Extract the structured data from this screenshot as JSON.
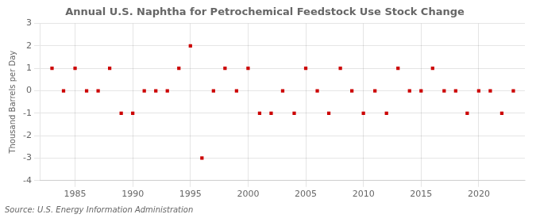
{
  "chart_data": {
    "type": "scatter",
    "title": "Annual U.S. Naphtha for Petrochemical Feedstock Use Stock Change",
    "ylabel": "Thousand Barrels per Day",
    "annotation": "Source: U.S. Energy Information Administration",
    "x": [
      1983,
      1984,
      1985,
      1986,
      1987,
      1988,
      1989,
      1990,
      1991,
      1992,
      1993,
      1994,
      1995,
      1996,
      1997,
      1998,
      1999,
      2000,
      2001,
      2002,
      2003,
      2004,
      2005,
      2006,
      2007,
      2008,
      2009,
      2010,
      2011,
      2012,
      2013,
      2014,
      2015,
      2016,
      2017,
      2018,
      2019,
      2020,
      2021,
      2022,
      2023
    ],
    "values": [
      1,
      0,
      1,
      0,
      0,
      1,
      -1,
      -1,
      0,
      0,
      0,
      1,
      2,
      -3,
      0,
      1,
      0,
      1,
      -1,
      -1,
      0,
      -1,
      1,
      0,
      -1,
      1,
      0,
      -1,
      0,
      -1,
      1,
      0,
      0,
      1,
      0,
      0,
      -1,
      0,
      0,
      -1,
      0
    ],
    "color": "#cc0000",
    "marker": "square",
    "xlim": [
      1982,
      2024
    ],
    "xticks": [
      1985,
      1990,
      1995,
      2000,
      2005,
      2010,
      2015,
      2020
    ],
    "ylim": [
      -4,
      3
    ],
    "yticks": [
      -4,
      -3,
      -2,
      -1,
      0,
      1,
      2,
      3
    ],
    "grid": true
  }
}
